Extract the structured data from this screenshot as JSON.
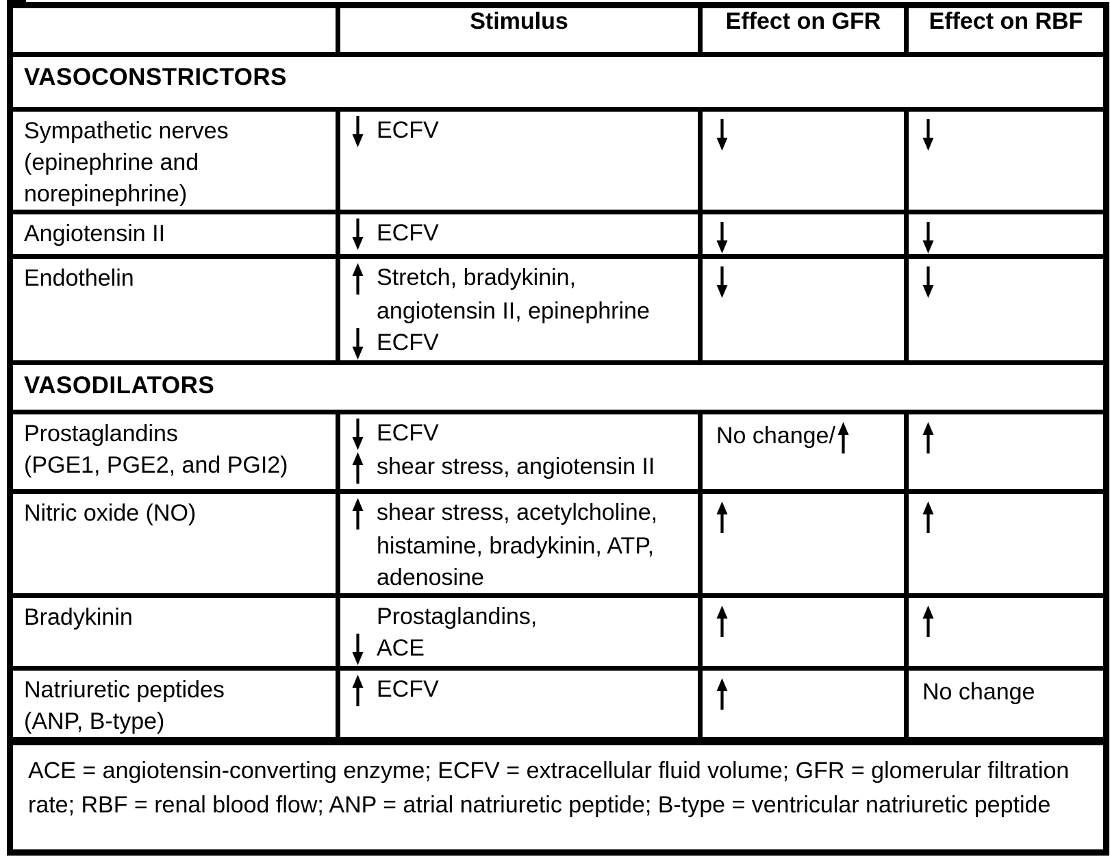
{
  "page": {
    "background": "#ffffff",
    "ink": "#000000"
  },
  "icons": {
    "up-arrow-icon": "↑",
    "down-arrow-icon": "↓"
  },
  "table": {
    "columns": [
      "",
      "Stimulus",
      "Effect on GFR",
      "Effect on RBF"
    ],
    "sections": [
      {
        "header": "VASOCONSTRICTORS",
        "rows": [
          {
            "name": [
              "Sympathetic nerves",
              "(epinephrine and",
              "norepinephrine)"
            ],
            "stimulus": [
              {
                "arrow": "down",
                "text": "ECFV"
              }
            ],
            "gfr": [
              {
                "arrow": "down"
              }
            ],
            "rbf": [
              {
                "arrow": "down"
              }
            ]
          },
          {
            "name": [
              "Angiotensin II"
            ],
            "stimulus": [
              {
                "arrow": "down",
                "text": "ECFV"
              }
            ],
            "gfr": [
              {
                "arrow": "down"
              }
            ],
            "rbf": [
              {
                "arrow": "down"
              }
            ]
          },
          {
            "name": [
              "Endothelin"
            ],
            "stimulus": [
              {
                "arrow": "up",
                "text": "Stretch, bradykinin,"
              },
              {
                "text": "angiotensin II, epinephrine"
              },
              {
                "arrow": "down",
                "text": "ECFV"
              }
            ],
            "gfr": [
              {
                "arrow": "down"
              }
            ],
            "rbf": [
              {
                "arrow": "down"
              }
            ]
          }
        ]
      },
      {
        "header": "VASODILATORS",
        "rows": [
          {
            "name": [
              "Prostaglandins",
              "(PGE1, PGE2, and PGI2)"
            ],
            "stimulus": [
              {
                "arrow": "down",
                "text": "ECFV"
              },
              {
                "arrow": "up",
                "text": "shear stress, angiotensin II"
              }
            ],
            "gfr": [
              {
                "text": "No change/",
                "arrow_after": "up"
              }
            ],
            "rbf": [
              {
                "arrow": "up"
              }
            ]
          },
          {
            "name": [
              "Nitric oxide (NO)"
            ],
            "stimulus": [
              {
                "arrow": "up",
                "text": "shear stress, acetylcholine,"
              },
              {
                "text": "histamine, bradykinin, ATP,"
              },
              {
                "text": "adenosine"
              }
            ],
            "gfr": [
              {
                "arrow": "up"
              }
            ],
            "rbf": [
              {
                "arrow": "up"
              }
            ]
          },
          {
            "name": [
              "Bradykinin"
            ],
            "stimulus": [
              {
                "text": "Prostaglandins,"
              },
              {
                "arrow": "down",
                "text": "ACE"
              }
            ],
            "gfr": [
              {
                "arrow": "up"
              }
            ],
            "rbf": [
              {
                "arrow": "up"
              }
            ]
          },
          {
            "name": [
              "Natriuretic peptides",
              "(ANP, B-type)"
            ],
            "stimulus": [
              {
                "arrow": "up",
                "text": "ECFV"
              }
            ],
            "gfr": [
              {
                "arrow": "up"
              }
            ],
            "rbf": [
              {
                "text": "No change"
              }
            ]
          }
        ]
      }
    ],
    "footnote": "ACE = angiotensin-converting enzyme; ECFV = extracellular fluid volume; GFR = glomerular filtration rate; RBF = renal blood flow; ANP = atrial natriuretic peptide; B-type = ventricular natriuretic peptide"
  }
}
